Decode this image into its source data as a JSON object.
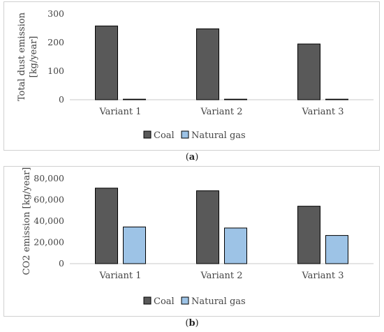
{
  "colors": {
    "coal": "#595959",
    "natural_gas": "#9dc3e6"
  },
  "chart_data": [
    {
      "type": "bar",
      "categories": [
        "Variant 1",
        "Variant 2",
        "Variant 3"
      ],
      "series": [
        {
          "name": "Coal",
          "values": [
            258,
            248,
            195
          ]
        },
        {
          "name": "Natural gas",
          "values": [
            0.5,
            0.5,
            0.5
          ]
        }
      ],
      "ylabel": "Total dust emission [kg/year]",
      "ylabel_lines": [
        "Total dust emission",
        "[kg/year]"
      ],
      "ylim": [
        0,
        300
      ],
      "yticks": [
        0,
        100,
        200,
        300
      ],
      "ytick_labels": [
        "0",
        "100",
        "200",
        "300"
      ],
      "legend": [
        "Coal",
        "Natural gas"
      ],
      "legend_position": "bottom",
      "grid": false,
      "caption": {
        "open": "(",
        "letter": "a",
        "close": ")"
      }
    },
    {
      "type": "bar",
      "categories": [
        "Variant 1",
        "Variant 2",
        "Variant 3"
      ],
      "series": [
        {
          "name": "Coal",
          "values": [
            71000,
            68500,
            54000
          ]
        },
        {
          "name": "Natural gas",
          "values": [
            34500,
            33500,
            26500
          ]
        }
      ],
      "ylabel": "CO2 emission [kg/year]",
      "ylabel_lines": [
        "CO2 emission [kg/year]"
      ],
      "ylim": [
        0,
        80000
      ],
      "yticks": [
        0,
        20000,
        40000,
        60000,
        80000
      ],
      "ytick_labels": [
        "0",
        "20,000",
        "40,000",
        "60,000",
        "80,000"
      ],
      "legend": [
        "Coal",
        "Natural gas"
      ],
      "legend_position": "bottom",
      "grid": false,
      "caption": {
        "open": "(",
        "letter": "b",
        "close": ")"
      }
    }
  ]
}
